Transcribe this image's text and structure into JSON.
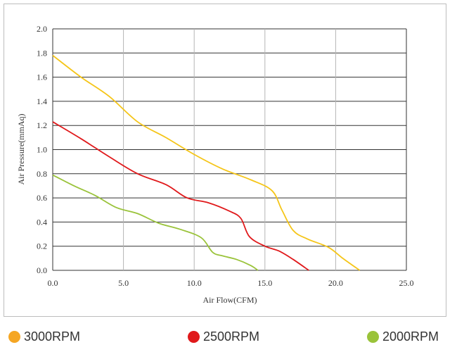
{
  "chart_data": {
    "type": "line",
    "xlabel": "Air Flow(CFM)",
    "ylabel": "Air Pressure(mmAq)",
    "xlim": [
      0,
      25
    ],
    "ylim": [
      0,
      2
    ],
    "x_ticks": [
      "0.0",
      "5.0",
      "10.0",
      "15.0",
      "20.0",
      "25.0"
    ],
    "y_ticks": [
      "0.0",
      "0.2",
      "0.4",
      "0.6",
      "0.8",
      "1.0",
      "1.2",
      "1.4",
      "1.6",
      "1.8",
      "2.0"
    ],
    "grid": true,
    "legend_position": "bottom",
    "series": [
      {
        "name": "3000RPM",
        "color": "#f5c518",
        "points": [
          [
            0,
            1.78
          ],
          [
            2,
            1.6
          ],
          [
            4,
            1.44
          ],
          [
            6,
            1.23
          ],
          [
            8,
            1.1
          ],
          [
            10,
            0.96
          ],
          [
            12,
            0.84
          ],
          [
            14,
            0.75
          ],
          [
            15.5,
            0.66
          ],
          [
            16.2,
            0.5
          ],
          [
            17,
            0.33
          ],
          [
            18,
            0.26
          ],
          [
            19.5,
            0.19
          ],
          [
            20.5,
            0.1
          ],
          [
            21.7,
            0.0
          ]
        ]
      },
      {
        "name": "2500RPM",
        "color": "#e0191b",
        "points": [
          [
            0,
            1.23
          ],
          [
            2,
            1.09
          ],
          [
            4,
            0.94
          ],
          [
            6,
            0.8
          ],
          [
            8,
            0.71
          ],
          [
            9.5,
            0.6
          ],
          [
            11,
            0.56
          ],
          [
            12.5,
            0.49
          ],
          [
            13.3,
            0.43
          ],
          [
            13.9,
            0.28
          ],
          [
            15,
            0.2
          ],
          [
            16,
            0.16
          ],
          [
            17,
            0.09
          ],
          [
            18.1,
            0.0
          ]
        ]
      },
      {
        "name": "2000RPM",
        "color": "#9ac33a",
        "points": [
          [
            0,
            0.79
          ],
          [
            1.5,
            0.7
          ],
          [
            3,
            0.62
          ],
          [
            4.5,
            0.52
          ],
          [
            6,
            0.47
          ],
          [
            7.5,
            0.39
          ],
          [
            9,
            0.34
          ],
          [
            10.5,
            0.27
          ],
          [
            11.3,
            0.15
          ],
          [
            12,
            0.12
          ],
          [
            13,
            0.09
          ],
          [
            14,
            0.04
          ],
          [
            14.5,
            0.0
          ]
        ]
      }
    ]
  }
}
